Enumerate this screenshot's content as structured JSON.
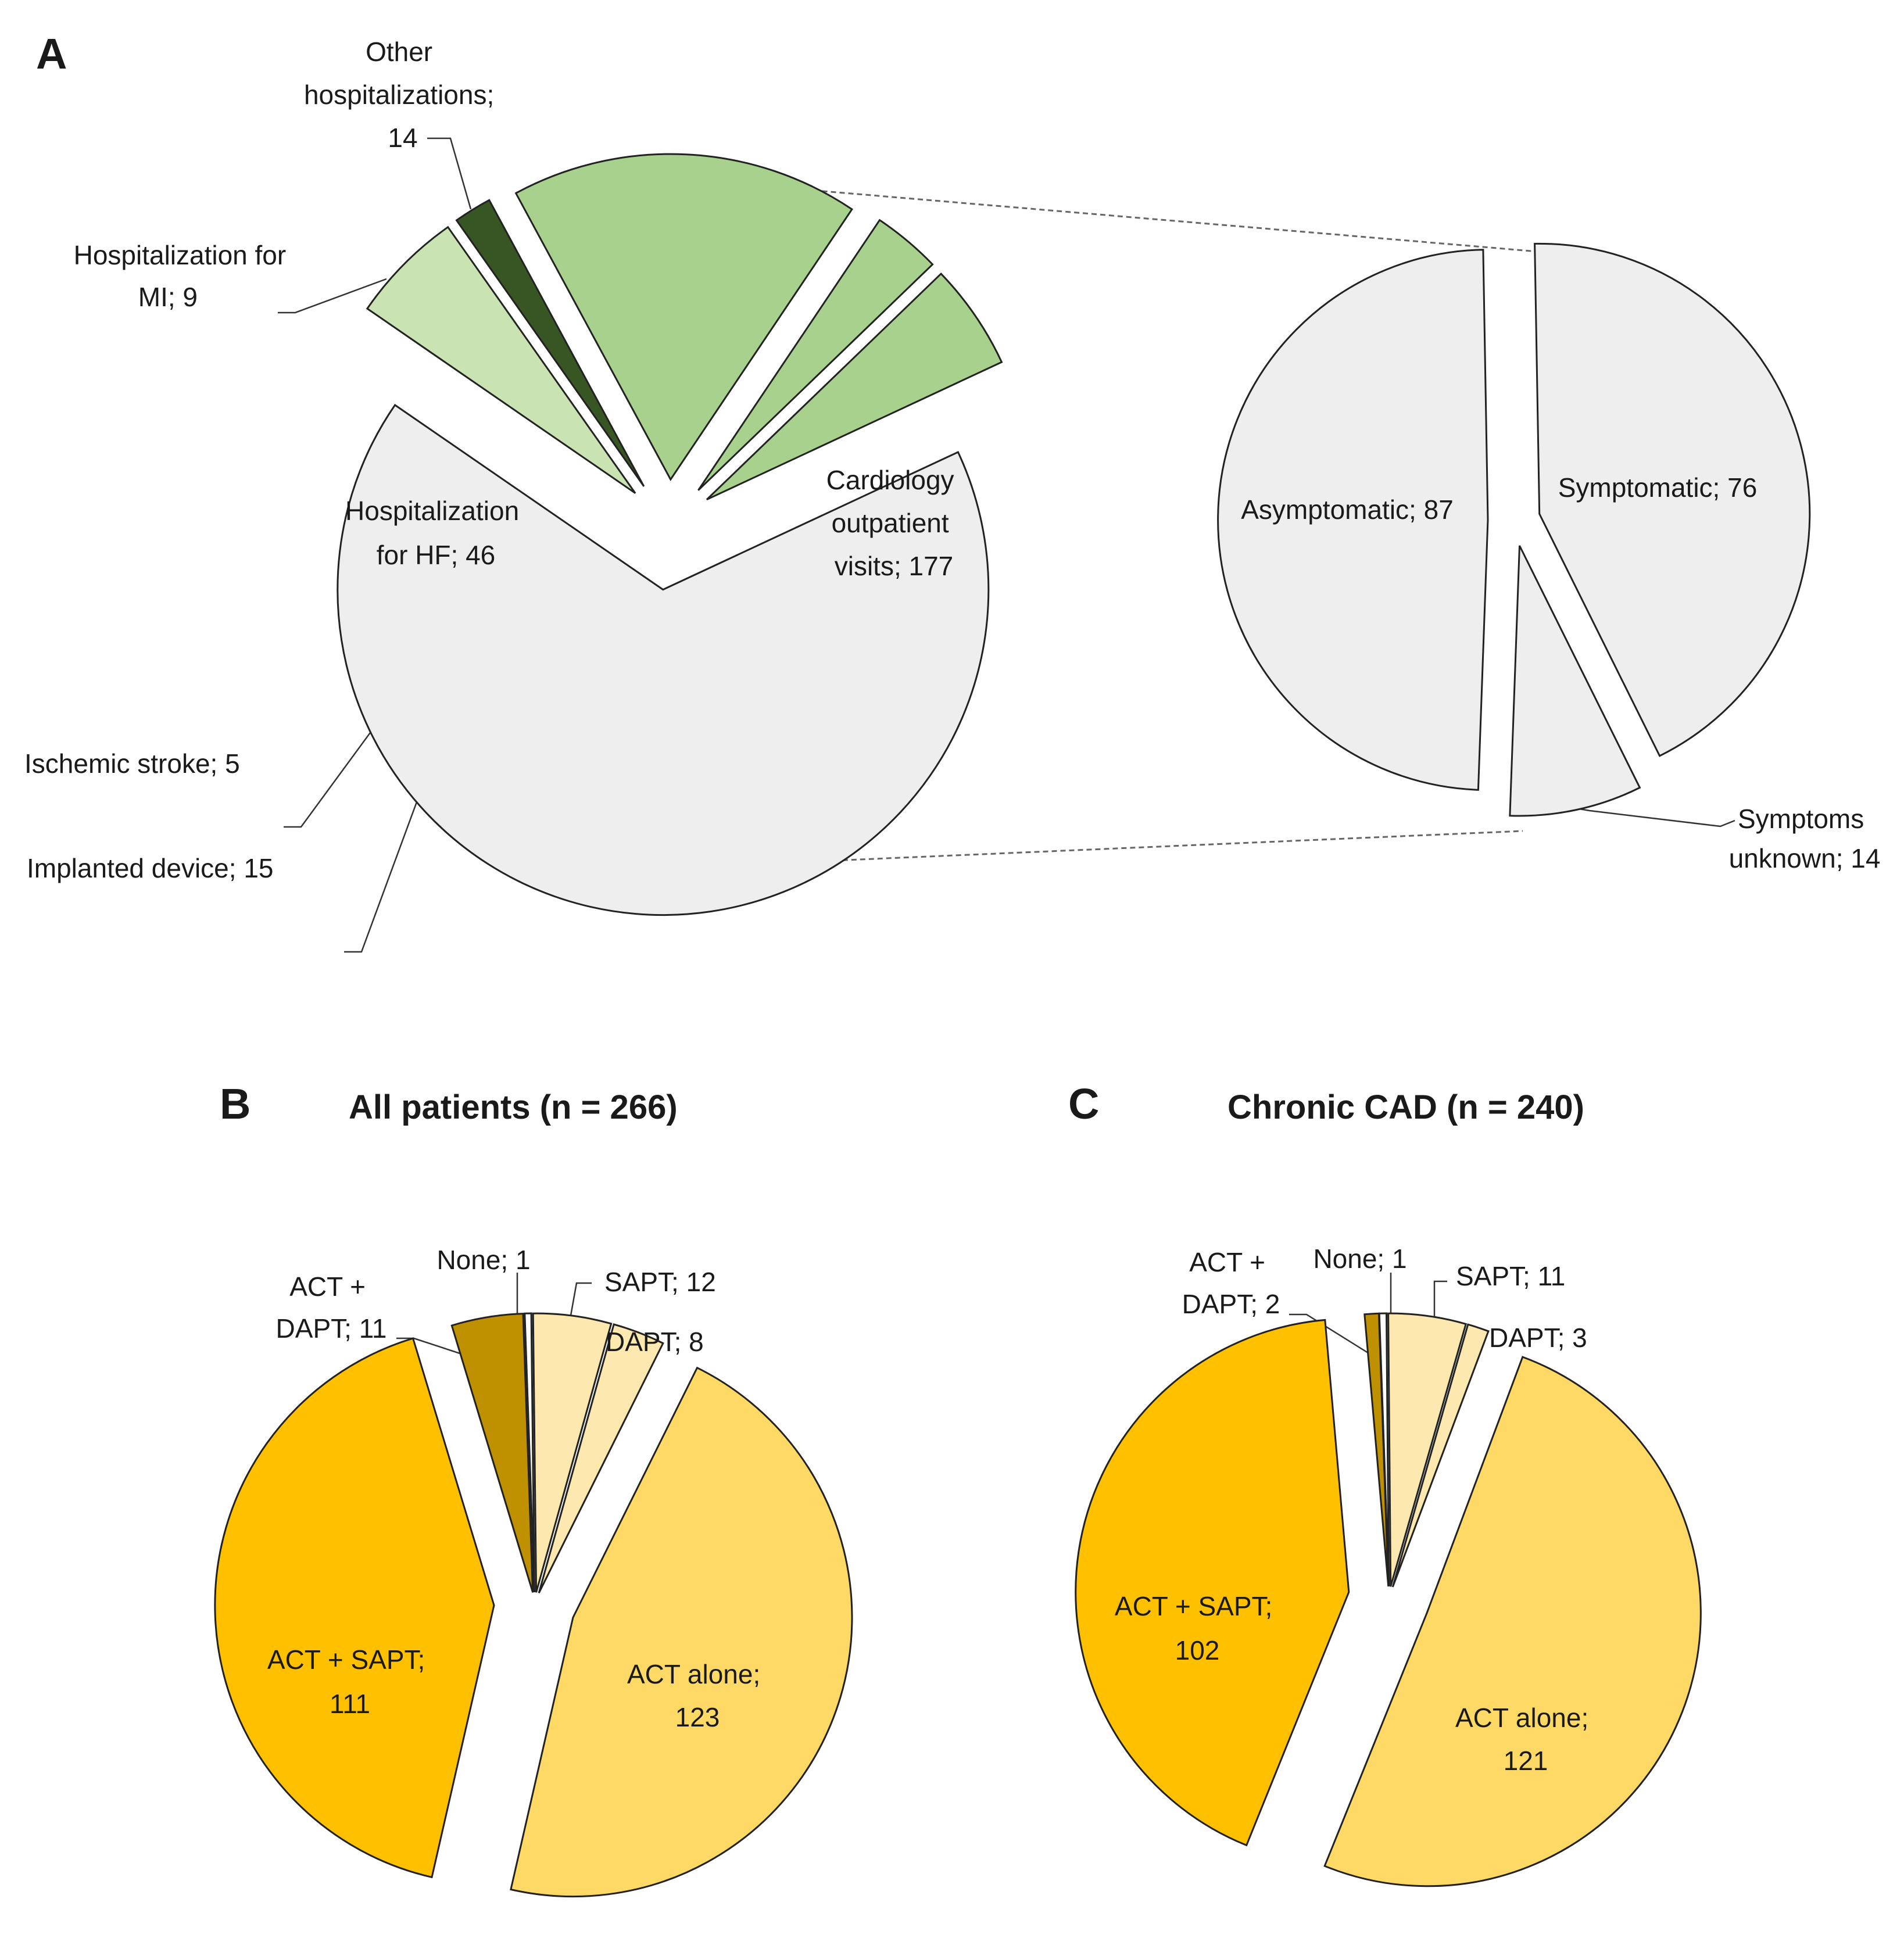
{
  "chart_data": [
    {
      "id": "A",
      "type": "pie",
      "panel_label": "A",
      "title": "",
      "slices": [
        {
          "label_lines": [
            "Cardiology",
            "outpatient",
            "visits; 177"
          ],
          "value": 177,
          "color": "#eeeeee"
        },
        {
          "label_lines": [
            "Implanted device; 15"
          ],
          "value": 15,
          "color": "#c9e3b2"
        },
        {
          "label_lines": [
            "Ischemic stroke; 5"
          ],
          "value": 5,
          "color": "#375623"
        },
        {
          "label_lines": [
            "Hospitalization",
            "for HF; 46"
          ],
          "value": 46,
          "color": "#a9d18e"
        },
        {
          "label_lines": [
            "Hospitalization for",
            "MI; 9"
          ],
          "value": 9,
          "color": "#a9d18e"
        },
        {
          "label_lines": [
            "Other",
            "hospitalizations;",
            "14"
          ],
          "value": 14,
          "color": "#a9d18e"
        }
      ],
      "breakdown": {
        "of": "Cardiology outpatient visits",
        "type": "pie",
        "slices": [
          {
            "label_lines": [
              "Symptomatic; 76"
            ],
            "value": 76,
            "color": "#eeeeee"
          },
          {
            "label_lines": [
              "Symptoms",
              "unknown; 14"
            ],
            "value": 14,
            "color": "#eeeeee"
          },
          {
            "label_lines": [
              "Asymptomatic; 87"
            ],
            "value": 87,
            "color": "#eeeeee"
          }
        ]
      }
    },
    {
      "id": "B",
      "type": "pie",
      "panel_label": "B",
      "title": "All patients (n = 266)",
      "slices": [
        {
          "label_lines": [
            "None; 1"
          ],
          "value": 1,
          "color": "#ffffff"
        },
        {
          "label_lines": [
            "SAPT; 12"
          ],
          "value": 12,
          "color": "#fde9b0"
        },
        {
          "label_lines": [
            "DAPT; 8"
          ],
          "value": 8,
          "color": "#fde9b0"
        },
        {
          "label_lines": [
            "ACT alone;",
            "123"
          ],
          "value": 123,
          "color": "#ffd966"
        },
        {
          "label_lines": [
            "ACT + SAPT;",
            "111"
          ],
          "value": 111,
          "color": "#ffc000"
        },
        {
          "label_lines": [
            "ACT +",
            "DAPT; 11"
          ],
          "value": 11,
          "color": "#bf9000"
        }
      ]
    },
    {
      "id": "C",
      "type": "pie",
      "panel_label": "C",
      "title": "Chronic CAD (n = 240)",
      "slices": [
        {
          "label_lines": [
            "None; 1"
          ],
          "value": 1,
          "color": "#ffffff"
        },
        {
          "label_lines": [
            "SAPT; 11"
          ],
          "value": 11,
          "color": "#fde9b0"
        },
        {
          "label_lines": [
            "DAPT; 3"
          ],
          "value": 3,
          "color": "#fde9b0"
        },
        {
          "label_lines": [
            "ACT alone;",
            "121"
          ],
          "value": 121,
          "color": "#ffd966"
        },
        {
          "label_lines": [
            "ACT + SAPT;",
            "102"
          ],
          "value": 102,
          "color": "#ffc000"
        },
        {
          "label_lines": [
            "ACT +",
            "DAPT; 2"
          ],
          "value": 2,
          "color": "#bf9000"
        }
      ]
    }
  ]
}
